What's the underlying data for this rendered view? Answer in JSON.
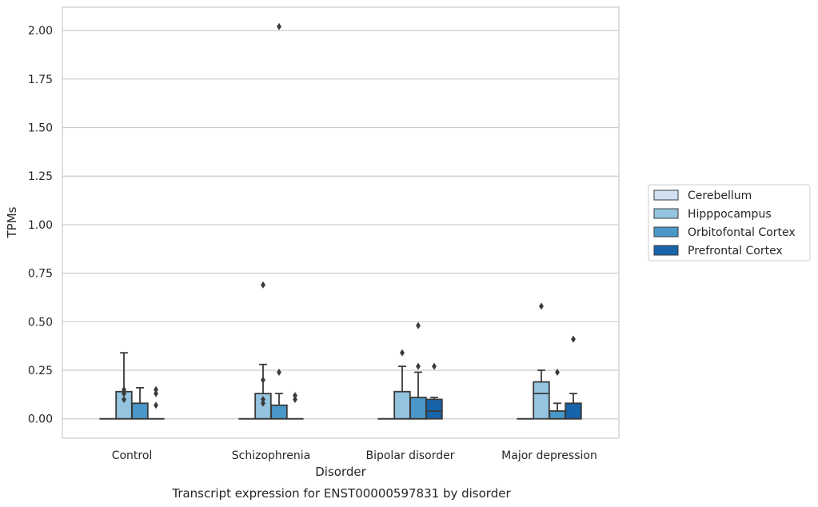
{
  "colors": {
    "grid": "#cccccc",
    "frame": "#cccccc",
    "stroke": "#3a3a3a",
    "text": "#262626",
    "series": [
      "#d0e1f2",
      "#94c4df",
      "#4a98c9",
      "#1764ab"
    ]
  },
  "chart_data": {
    "type": "box",
    "title": "Transcript expression for ENST00000597831 by disorder",
    "xlabel": "Disorder",
    "ylabel": "TPMs",
    "ylim": [
      -0.1,
      2.12
    ],
    "yticks": [
      0.0,
      0.25,
      0.5,
      0.75,
      1.0,
      1.25,
      1.5,
      1.75,
      2.0
    ],
    "ytick_labels": [
      "0.00",
      "0.25",
      "0.50",
      "0.75",
      "1.00",
      "1.25",
      "1.50",
      "1.75",
      "2.00"
    ],
    "grid": true,
    "legend_position": "right",
    "categories": [
      "Control",
      "Schizophrenia",
      "Bipolar disorder",
      "Major depression"
    ],
    "series": [
      {
        "name": "Cerebellum",
        "boxes": [
          {
            "q1": 0,
            "median": 0,
            "q3": 0,
            "whisker_low": 0,
            "whisker_high": 0,
            "outliers": []
          },
          {
            "q1": 0,
            "median": 0,
            "q3": 0,
            "whisker_low": 0,
            "whisker_high": 0,
            "outliers": []
          },
          {
            "q1": 0,
            "median": 0,
            "q3": 0,
            "whisker_low": 0,
            "whisker_high": 0,
            "outliers": []
          },
          {
            "q1": 0,
            "median": 0,
            "q3": 0,
            "whisker_low": 0,
            "whisker_high": 0,
            "outliers": []
          }
        ]
      },
      {
        "name": "Hipppocampus",
        "boxes": [
          {
            "q1": 0,
            "median": 0,
            "q3": 0.14,
            "whisker_low": 0,
            "whisker_high": 0.34,
            "outliers": [
              0.1,
              0.13,
              0.15
            ]
          },
          {
            "q1": 0,
            "median": 0,
            "q3": 0.13,
            "whisker_low": 0,
            "whisker_high": 0.28,
            "outliers": [
              0.08,
              0.1,
              0.2,
              0.69
            ]
          },
          {
            "q1": 0,
            "median": 0,
            "q3": 0.14,
            "whisker_low": 0,
            "whisker_high": 0.27,
            "outliers": [
              0.34
            ]
          },
          {
            "q1": 0,
            "median": 0.13,
            "q3": 0.19,
            "whisker_low": 0,
            "whisker_high": 0.25,
            "outliers": [
              0.58
            ]
          }
        ]
      },
      {
        "name": "Orbitofontal Cortex",
        "boxes": [
          {
            "q1": 0,
            "median": 0,
            "q3": 0.08,
            "whisker_low": 0,
            "whisker_high": 0.16,
            "outliers": []
          },
          {
            "q1": 0,
            "median": 0,
            "q3": 0.07,
            "whisker_low": 0,
            "whisker_high": 0.13,
            "outliers": [
              0.24,
              2.02
            ]
          },
          {
            "q1": 0,
            "median": 0,
            "q3": 0.11,
            "whisker_low": 0,
            "whisker_high": 0.24,
            "outliers": [
              0.27,
              0.48
            ]
          },
          {
            "q1": 0,
            "median": 0,
            "q3": 0.04,
            "whisker_low": 0,
            "whisker_high": 0.08,
            "outliers": [
              0.24
            ]
          }
        ]
      },
      {
        "name": "Prefrontal Cortex",
        "boxes": [
          {
            "q1": 0,
            "median": 0,
            "q3": 0,
            "whisker_low": 0,
            "whisker_high": 0,
            "outliers": [
              0.07,
              0.13,
              0.15
            ]
          },
          {
            "q1": 0,
            "median": 0,
            "q3": 0,
            "whisker_low": 0,
            "whisker_high": 0,
            "outliers": [
              0.1,
              0.12
            ]
          },
          {
            "q1": 0,
            "median": 0.04,
            "q3": 0.1,
            "whisker_low": 0,
            "whisker_high": 0.11,
            "outliers": [
              0.27
            ]
          },
          {
            "q1": 0,
            "median": 0,
            "q3": 0.08,
            "whisker_low": 0,
            "whisker_high": 0.13,
            "outliers": [
              0.41
            ]
          }
        ]
      }
    ]
  }
}
